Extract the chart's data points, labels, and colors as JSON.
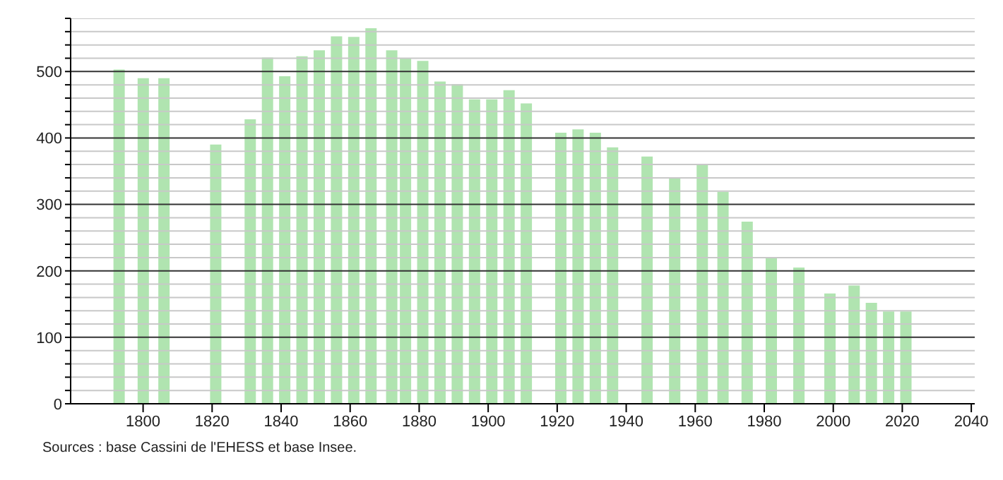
{
  "chart_data": {
    "type": "bar",
    "x": [
      1793,
      1800,
      1806,
      1821,
      1831,
      1836,
      1841,
      1846,
      1851,
      1856,
      1861,
      1866,
      1872,
      1876,
      1881,
      1886,
      1891,
      1896,
      1901,
      1906,
      1911,
      1921,
      1926,
      1931,
      1936,
      1946,
      1954,
      1962,
      1968,
      1975,
      1982,
      1990,
      1999,
      2006,
      2011,
      2016,
      2021
    ],
    "values": [
      503,
      490,
      490,
      390,
      428,
      521,
      493,
      523,
      532,
      553,
      552,
      565,
      532,
      520,
      516,
      485,
      481,
      458,
      458,
      472,
      452,
      408,
      413,
      408,
      386,
      372,
      341,
      359,
      319,
      274,
      219,
      205,
      166,
      178,
      152,
      139,
      139
    ],
    "color": "#b0e4b0",
    "xlim": [
      1779,
      2041
    ],
    "xticks": [
      1800,
      1820,
      1840,
      1860,
      1880,
      1900,
      1920,
      1940,
      1960,
      1980,
      2000,
      2020,
      2040
    ],
    "ylim": [
      0,
      580
    ],
    "yticks": [
      0,
      {
        "value": 20,
        "label": null
      },
      {
        "value": 40,
        "label": null
      },
      {
        "value": 60,
        "label": null
      },
      {
        "value": 80,
        "label": null
      },
      100,
      {
        "value": 120,
        "label": null
      },
      {
        "value": 140,
        "label": null
      },
      {
        "value": 160,
        "label": null
      },
      {
        "value": 180,
        "label": null
      },
      200,
      {
        "value": 220,
        "label": null
      },
      {
        "value": 240,
        "label": null
      },
      {
        "value": 260,
        "label": null
      },
      {
        "value": 280,
        "label": null
      },
      300,
      {
        "value": 320,
        "label": null
      },
      {
        "value": 340,
        "label": null
      },
      {
        "value": 360,
        "label": null
      },
      {
        "value": 380,
        "label": null
      },
      400,
      {
        "value": 420,
        "label": null
      },
      {
        "value": 440,
        "label": null
      },
      {
        "value": 460,
        "label": null
      },
      {
        "value": 480,
        "label": null
      },
      500,
      {
        "value": 520,
        "label": null
      },
      {
        "value": 540,
        "label": null
      },
      {
        "value": 560,
        "label": null
      },
      {
        "value": 580,
        "label": null
      }
    ],
    "grid": "y",
    "annotations": [
      "Sources : base Cassini de l'EHESS et base Insee."
    ]
  }
}
